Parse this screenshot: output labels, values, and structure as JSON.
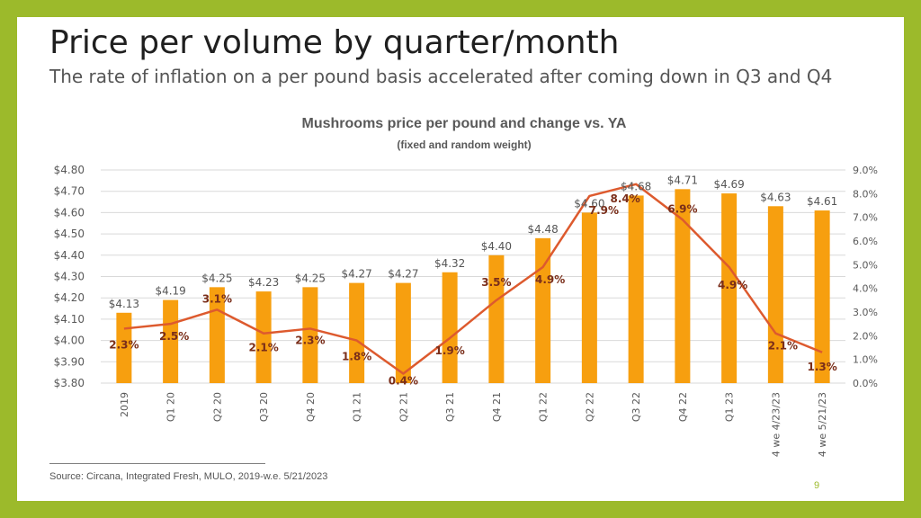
{
  "slide": {
    "title": "Price per volume by quarter/month",
    "subtitle": "The rate of inflation on a per pound basis accelerated after coming down in Q3 and Q4",
    "source": "Source: Circana, Integrated Fresh, MULO, 2019-w.e. 5/21/2023",
    "page_number": "9"
  },
  "colors": {
    "frame": "#9cba2b",
    "bar": "#f79f0f",
    "line": "#dd5a2e",
    "label_text": "#7a2e1a",
    "price_label": "#555555"
  },
  "chart_data": {
    "type": "bar",
    "title": "Mushrooms price per pound and change vs. YA",
    "subtitle": "(fixed and random weight)",
    "categories": [
      "2019",
      "Q1 20",
      "Q2 20",
      "Q3 20",
      "Q4 20",
      "Q1 21",
      "Q2 21",
      "Q3 21",
      "Q4 21",
      "Q1 22",
      "Q2 22",
      "Q3 22",
      "Q4 22",
      "Q1 23",
      "4 we 4/23/23",
      "4 we 5/21/23"
    ],
    "series": [
      {
        "type": "bar",
        "axis": "left",
        "values": [
          4.13,
          4.19,
          4.25,
          4.23,
          4.25,
          4.27,
          4.27,
          4.32,
          4.4,
          4.48,
          4.6,
          4.68,
          4.71,
          4.69,
          4.63,
          4.61
        ],
        "labels": [
          "$4.13",
          "$4.19",
          "$4.25",
          "$4.23",
          "$4.25",
          "$4.27",
          "$4.27",
          "$4.32",
          "$4.40",
          "$4.48",
          "$4.60",
          "$4.68",
          "$4.71",
          "$4.69",
          "$4.63",
          "$4.61"
        ]
      },
      {
        "type": "line",
        "axis": "right",
        "values": [
          2.3,
          2.5,
          3.1,
          2.1,
          2.3,
          1.8,
          0.4,
          1.9,
          3.5,
          4.9,
          7.9,
          8.4,
          6.9,
          4.9,
          2.1,
          1.3
        ],
        "labels": [
          "2.3%",
          "2.5%",
          "3.1%",
          "2.1%",
          "2.3%",
          "1.8%",
          "0.4%",
          "1.9%",
          "3.5%",
          "4.9%",
          "7.9%",
          "8.4%",
          "6.9%",
          "4.9%",
          "2.1%",
          "1.3%"
        ]
      }
    ],
    "y_left": {
      "min": 3.8,
      "max": 4.8,
      "ticks": [
        4.8,
        4.7,
        4.6,
        4.5,
        4.4,
        4.3,
        4.2,
        4.1,
        4.0,
        3.9,
        3.8
      ],
      "tick_labels": [
        "$4.80",
        "$4.70",
        "$4.60",
        "$4.50",
        "$4.40",
        "$4.30",
        "$4.20",
        "$4.10",
        "$4.00",
        "$3.90",
        "$3.80"
      ]
    },
    "y_right": {
      "min": 0,
      "max": 9,
      "ticks": [
        9,
        8,
        7,
        6,
        5,
        4,
        3,
        2,
        1,
        0
      ],
      "tick_labels": [
        "9.0%",
        "8.0%",
        "7.0%",
        "6.0%",
        "5.0%",
        "4.0%",
        "3.0%",
        "2.0%",
        "1.0%",
        "0.0%"
      ]
    },
    "grid": true,
    "legend": "none"
  }
}
